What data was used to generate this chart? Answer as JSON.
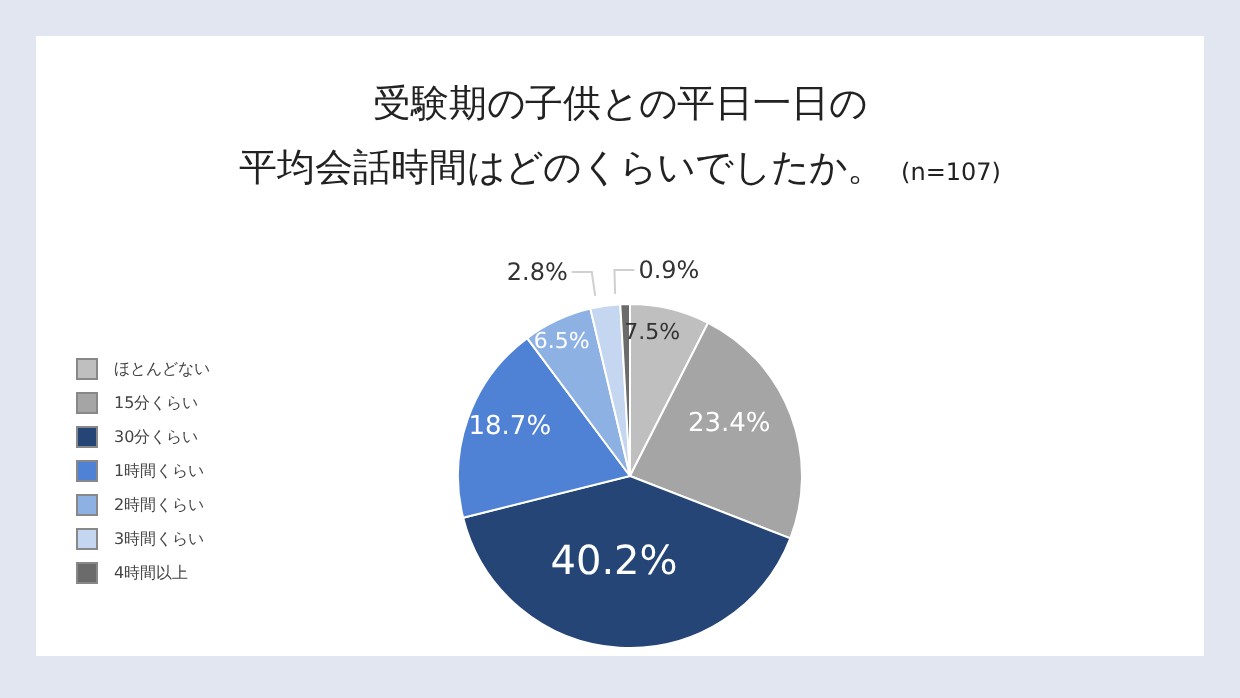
{
  "chart_data": {
    "type": "pie",
    "title": "受験期の子供との平日一日の",
    "subtitle": "平均会話時間はどのくらいでしたか。",
    "annotations": [
      "(n=107)"
    ],
    "categories": [
      "ほとんどない",
      "15分くらい",
      "30分くらい",
      "1時間くらい",
      "2時間くらい",
      "3時間くらい",
      "4時間以上"
    ],
    "values": [
      7.5,
      23.4,
      40.2,
      18.7,
      6.5,
      2.8,
      0.9
    ],
    "colors": [
      "#bfbfbf",
      "#a5a5a5",
      "#254577",
      "#4f81d4",
      "#8eb1e3",
      "#c5d6f0",
      "#6b6b6b"
    ],
    "value_labels": [
      "7.5%",
      "23.4%",
      "40.2%",
      "18.7%",
      "6.5%",
      "2.8%",
      "0.9%"
    ],
    "legend": "left"
  }
}
